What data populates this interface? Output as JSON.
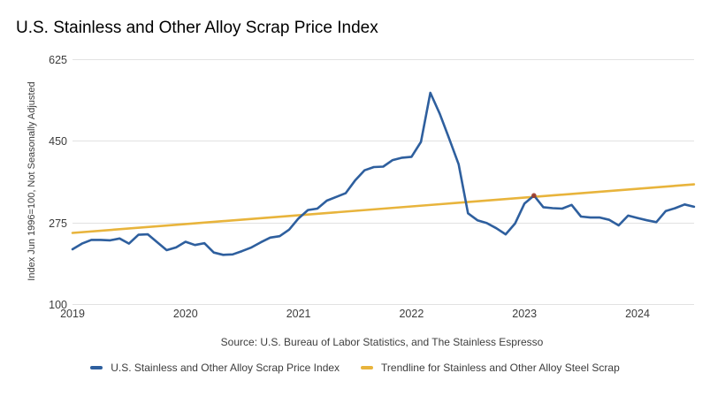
{
  "source": {
    "text": "Source: U.S. Bureau of Labor Statistics, and The Stainless Espresso"
  },
  "chart_data": {
    "type": "line",
    "title": "U.S. Stainless and Other Alloy Scrap Price Index",
    "xlabel": "",
    "ylabel": "Index Jun 1996=100, Not Seasonally Adjusted",
    "ylim": [
      100,
      625
    ],
    "y_ticks": [
      100,
      275,
      450,
      625
    ],
    "x_tick_labels": [
      "2019",
      "2020",
      "2021",
      "2022",
      "2023",
      "2024"
    ],
    "x_start": "2019-01",
    "x_end": "2024-07",
    "frequency": "monthly",
    "grid": "horizontal",
    "legend_position": "bottom",
    "series": [
      {
        "name": "U.S. Stainless and Other Alloy Scrap Price Index",
        "color": "#2e5f9e",
        "values": [
          218,
          230,
          238,
          238,
          237,
          241,
          230,
          249,
          250,
          233,
          216,
          222,
          234,
          227,
          231,
          211,
          206,
          207,
          214,
          222,
          233,
          243,
          246,
          260,
          284,
          302,
          305,
          322,
          330,
          338,
          365,
          387,
          394,
          395,
          409,
          414,
          416,
          448,
          553,
          508,
          455,
          400,
          295,
          280,
          274,
          263,
          250,
          273,
          316,
          333,
          308,
          306,
          305,
          313,
          288,
          286,
          286,
          281,
          269,
          290,
          285,
          280,
          276,
          300,
          306,
          314,
          309
        ]
      },
      {
        "name": "Trendline for Stainless and Other Alloy Steel Scrap",
        "color": "#e8b43c",
        "trend": true,
        "start_value": 253,
        "end_value": 357
      }
    ],
    "crossing_marker": {
      "month_index": 49,
      "value": 333,
      "color": "#a23c28"
    },
    "gridline_color": "#e2e2e2",
    "tick_label_color": "#3c3c3c"
  }
}
